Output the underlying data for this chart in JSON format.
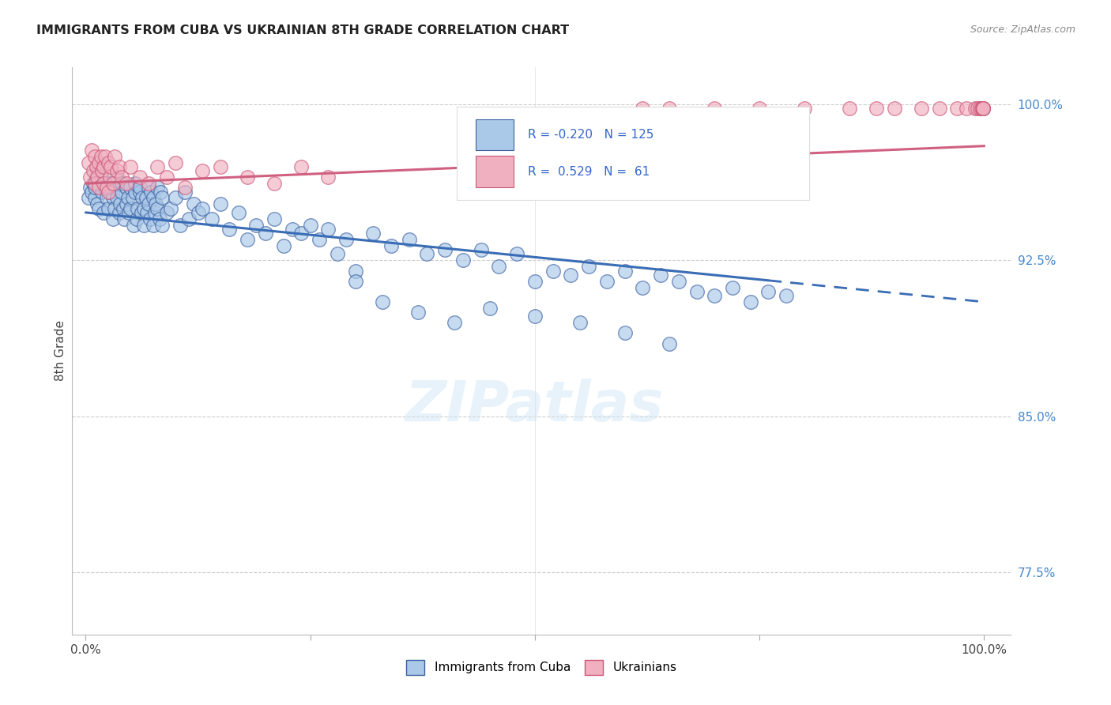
{
  "title": "IMMIGRANTS FROM CUBA VS UKRAINIAN 8TH GRADE CORRELATION CHART",
  "source": "Source: ZipAtlas.com",
  "ylabel": "8th Grade",
  "y_ticks": [
    77.5,
    85.0,
    92.5,
    100.0
  ],
  "y_tick_labels": [
    "77.5%",
    "85.0%",
    "92.5%",
    "100.0%"
  ],
  "blue_R": -0.22,
  "blue_N": 125,
  "pink_R": 0.529,
  "pink_N": 61,
  "blue_color": "#aac8e8",
  "blue_edge_color": "#3a5fa0",
  "pink_color": "#f0b0c0",
  "pink_edge_color": "#cc5577",
  "blue_line_color": "#3a6db5",
  "pink_line_color": "#d06080",
  "legend_label_blue": "Immigrants from Cuba",
  "legend_label_pink": "Ukrainians",
  "ylim_bottom": 74.5,
  "ylim_top": 101.8,
  "xlim_left": -1.5,
  "xlim_right": 103.0,
  "blue_points_x": [
    0.3,
    0.5,
    0.7,
    0.8,
    1.0,
    1.0,
    1.2,
    1.3,
    1.5,
    1.5,
    1.7,
    1.8,
    2.0,
    2.0,
    2.2,
    2.3,
    2.5,
    2.5,
    2.7,
    2.8,
    3.0,
    3.0,
    3.2,
    3.3,
    3.5,
    3.5,
    3.7,
    3.8,
    4.0,
    4.0,
    4.2,
    4.3,
    4.5,
    4.5,
    4.7,
    4.8,
    5.0,
    5.0,
    5.2,
    5.3,
    5.5,
    5.5,
    5.7,
    5.8,
    6.0,
    6.0,
    6.2,
    6.3,
    6.5,
    6.5,
    6.7,
    6.8,
    7.0,
    7.0,
    7.2,
    7.3,
    7.5,
    7.5,
    7.7,
    7.8,
    8.0,
    8.0,
    8.2,
    8.3,
    8.5,
    8.5,
    9.0,
    9.5,
    10.0,
    10.5,
    11.0,
    11.5,
    12.0,
    12.5,
    13.0,
    14.0,
    15.0,
    16.0,
    17.0,
    18.0,
    19.0,
    20.0,
    21.0,
    22.0,
    23.0,
    24.0,
    25.0,
    26.0,
    27.0,
    28.0,
    29.0,
    30.0,
    32.0,
    34.0,
    36.0,
    38.0,
    40.0,
    42.0,
    44.0,
    46.0,
    48.0,
    50.0,
    52.0,
    54.0,
    56.0,
    58.0,
    60.0,
    62.0,
    64.0,
    66.0,
    68.0,
    70.0,
    72.0,
    74.0,
    76.0,
    78.0,
    30.0,
    33.0,
    37.0,
    41.0,
    45.0,
    50.0,
    55.0,
    60.0,
    65.0
  ],
  "blue_points_y": [
    95.5,
    96.0,
    95.8,
    96.2,
    95.5,
    96.0,
    96.5,
    95.2,
    96.8,
    95.0,
    96.5,
    95.8,
    96.2,
    94.8,
    96.0,
    95.5,
    96.2,
    95.0,
    95.8,
    96.0,
    95.5,
    94.5,
    95.0,
    96.0,
    95.5,
    96.5,
    94.8,
    95.2,
    95.8,
    96.2,
    95.0,
    94.5,
    95.2,
    96.0,
    95.5,
    94.8,
    95.0,
    96.0,
    95.5,
    94.2,
    95.8,
    96.2,
    94.5,
    95.0,
    95.8,
    96.0,
    94.8,
    95.5,
    94.2,
    95.0,
    95.5,
    94.8,
    95.2,
    96.0,
    94.5,
    95.8,
    94.2,
    95.5,
    94.8,
    95.2,
    95.0,
    96.0,
    94.5,
    95.8,
    94.2,
    95.5,
    94.8,
    95.0,
    95.5,
    94.2,
    95.8,
    94.5,
    95.2,
    94.8,
    95.0,
    94.5,
    95.2,
    94.0,
    94.8,
    93.5,
    94.2,
    93.8,
    94.5,
    93.2,
    94.0,
    93.8,
    94.2,
    93.5,
    94.0,
    92.8,
    93.5,
    92.0,
    93.8,
    93.2,
    93.5,
    92.8,
    93.0,
    92.5,
    93.0,
    92.2,
    92.8,
    91.5,
    92.0,
    91.8,
    92.2,
    91.5,
    92.0,
    91.2,
    91.8,
    91.5,
    91.0,
    90.8,
    91.2,
    90.5,
    91.0,
    90.8,
    91.5,
    90.5,
    90.0,
    89.5,
    90.2,
    89.8,
    89.5,
    89.0,
    88.5
  ],
  "pink_points_x": [
    0.3,
    0.5,
    0.7,
    0.8,
    1.0,
    1.0,
    1.2,
    1.3,
    1.5,
    1.5,
    1.7,
    1.8,
    2.0,
    2.0,
    2.2,
    2.3,
    2.5,
    2.5,
    2.7,
    2.8,
    3.0,
    3.2,
    3.5,
    3.7,
    4.0,
    4.5,
    5.0,
    6.0,
    7.0,
    8.0,
    9.0,
    10.0,
    11.0,
    13.0,
    15.0,
    18.0,
    21.0,
    24.0,
    27.0,
    62.0,
    65.0,
    70.0,
    75.0,
    80.0,
    85.0,
    88.0,
    90.0,
    93.0,
    95.0,
    97.0,
    98.0,
    99.0,
    99.3,
    99.5,
    99.7,
    99.8,
    99.9,
    99.9,
    99.9,
    99.9,
    99.9
  ],
  "pink_points_y": [
    97.2,
    96.5,
    97.8,
    96.8,
    97.5,
    96.2,
    97.0,
    96.5,
    97.2,
    96.0,
    97.5,
    96.8,
    97.0,
    96.2,
    97.5,
    96.0,
    97.2,
    95.8,
    96.5,
    97.0,
    96.2,
    97.5,
    96.8,
    97.0,
    96.5,
    96.2,
    97.0,
    96.5,
    96.2,
    97.0,
    96.5,
    97.2,
    96.0,
    96.8,
    97.0,
    96.5,
    96.2,
    97.0,
    96.5,
    99.8,
    99.8,
    99.8,
    99.8,
    99.8,
    99.8,
    99.8,
    99.8,
    99.8,
    99.8,
    99.8,
    99.8,
    99.8,
    99.8,
    99.8,
    99.8,
    99.8,
    99.8,
    99.8,
    99.8,
    99.8,
    99.8
  ],
  "blue_line_x0": 0.0,
  "blue_line_y0": 94.8,
  "blue_line_x1": 100.0,
  "blue_line_y1": 90.5,
  "blue_solid_end": 76.0,
  "pink_line_x0": 0.0,
  "pink_line_y0": 96.2,
  "pink_line_x1": 100.0,
  "pink_line_y1": 98.0
}
